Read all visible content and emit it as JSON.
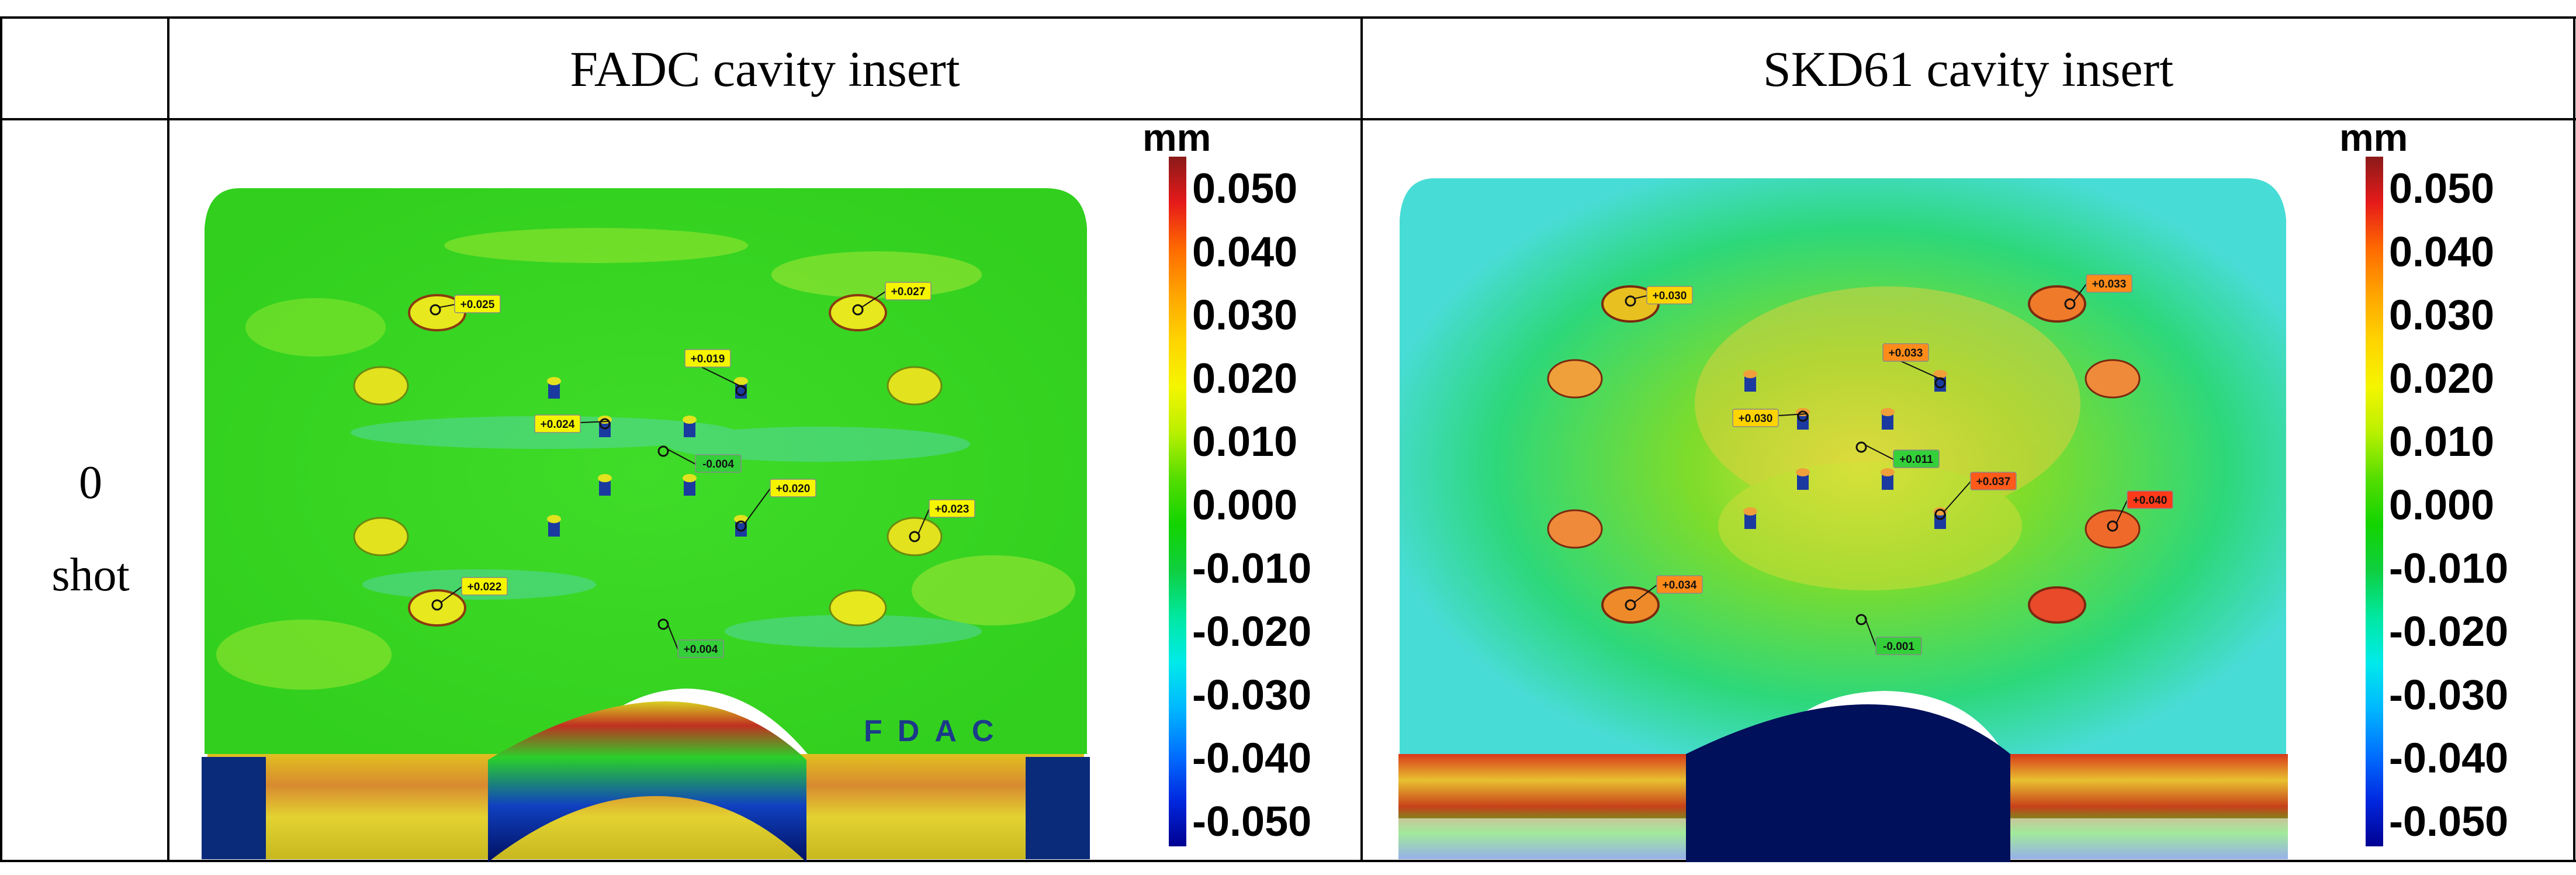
{
  "table": {
    "header_col1": "FADC cavity insert",
    "header_col2": "SKD61 cavity insert",
    "row_label_line1": "0",
    "row_label_line2": "shot"
  },
  "colorbar": {
    "unit": "mm",
    "ticks": [
      "0.050",
      "0.040",
      "0.030",
      "0.020",
      "0.010",
      "0.000",
      "-0.010",
      "-0.020",
      "-0.030",
      "-0.040",
      "-0.050"
    ],
    "colors": [
      "#8b1a1a",
      "#e61a1a",
      "#ff6a00",
      "#ffa500",
      "#ffd400",
      "#f5f500",
      "#b9f000",
      "#55dd00",
      "#12d400",
      "#0fcf40",
      "#00e8a0",
      "#00eaea",
      "#00b8ff",
      "#0070ff",
      "#0028e0",
      "#000090"
    ]
  },
  "fadc": {
    "stamp": "FDAC",
    "labels": [
      {
        "text": "+0.025",
        "fill": "#f5f500"
      },
      {
        "text": "+0.027",
        "fill": "#f5f500"
      },
      {
        "text": "+0.019",
        "fill": "#f5f500"
      },
      {
        "text": "+0.024",
        "fill": "#f5f500"
      },
      {
        "text": "-0.004",
        "fill": "#34d03a"
      },
      {
        "text": "+0.020",
        "fill": "#f5f500"
      },
      {
        "text": "+0.023",
        "fill": "#f5f500"
      },
      {
        "text": "+0.022",
        "fill": "#f5f500"
      },
      {
        "text": "+0.004",
        "fill": "#34d03a"
      }
    ]
  },
  "skd61": {
    "labels": [
      {
        "text": "+0.030",
        "fill": "#ffd400"
      },
      {
        "text": "+0.033",
        "fill": "#ff8c1a"
      },
      {
        "text": "+0.033",
        "fill": "#ff8c1a"
      },
      {
        "text": "+0.030",
        "fill": "#ffd400"
      },
      {
        "text": "+0.011",
        "fill": "#34d03a"
      },
      {
        "text": "+0.037",
        "fill": "#ff5a1a"
      },
      {
        "text": "+0.040",
        "fill": "#ff3a1a"
      },
      {
        "text": "+0.034",
        "fill": "#ff8c1a"
      },
      {
        "text": "-0.001",
        "fill": "#34d03a"
      }
    ]
  }
}
